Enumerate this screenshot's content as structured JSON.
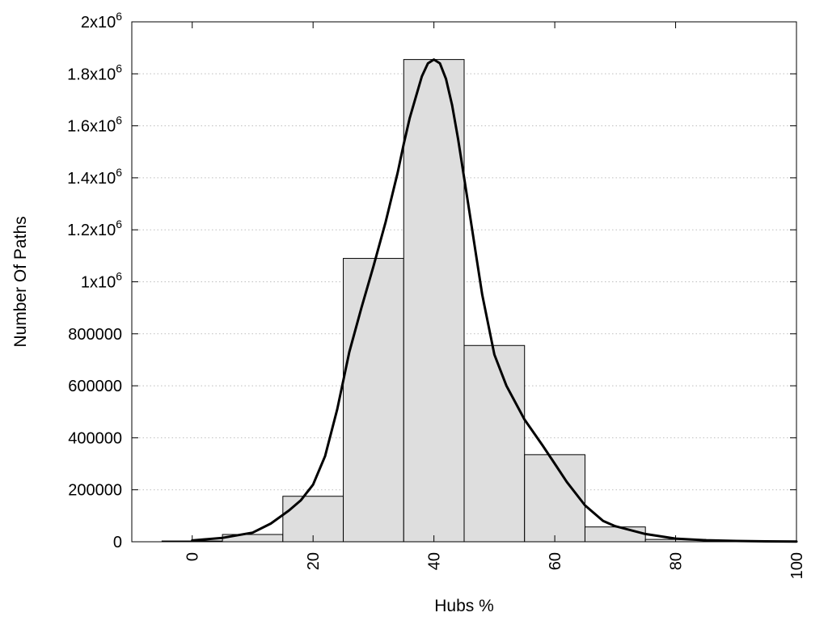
{
  "chart_data": {
    "type": "bar",
    "title": "",
    "xlabel": "Hubs %",
    "ylabel": "Number Of Paths",
    "xlim": [
      -10,
      100
    ],
    "ylim": [
      0,
      2000000
    ],
    "grid": "horizontal dotted",
    "legend": "none",
    "x_ticks": [
      0,
      20,
      40,
      60,
      80,
      100
    ],
    "x_tick_labels": [
      "0",
      "20",
      "40",
      "60",
      "80",
      "100"
    ],
    "y_ticks": [
      0,
      200000,
      400000,
      600000,
      800000,
      1000000,
      1200000,
      1400000,
      1600000,
      1800000,
      2000000
    ],
    "y_tick_labels": [
      {
        "base": "0",
        "exp": ""
      },
      {
        "base": "200000",
        "exp": ""
      },
      {
        "base": "400000",
        "exp": ""
      },
      {
        "base": "600000",
        "exp": ""
      },
      {
        "base": "800000",
        "exp": ""
      },
      {
        "base": "1x10",
        "exp": "6"
      },
      {
        "base": "1.2x10",
        "exp": "6"
      },
      {
        "base": "1.4x10",
        "exp": "6"
      },
      {
        "base": "1.6x10",
        "exp": "6"
      },
      {
        "base": "1.8x10",
        "exp": "6"
      },
      {
        "base": "2x10",
        "exp": "6"
      }
    ],
    "bars": {
      "bin_width": 10,
      "centers": [
        0,
        10,
        20,
        30,
        40,
        50,
        60,
        70,
        80,
        90
      ],
      "values": [
        3000,
        28000,
        175000,
        1090000,
        1855000,
        755000,
        335000,
        57000,
        9000,
        1500
      ]
    },
    "curve": {
      "x": [
        0,
        5,
        10,
        13,
        16,
        18,
        20,
        22,
        24,
        26,
        28,
        30,
        32,
        34,
        35,
        36,
        37,
        38,
        39,
        40,
        41,
        42,
        43,
        44,
        45,
        46,
        47,
        48,
        50,
        52,
        55,
        58,
        60,
        62,
        65,
        68,
        70,
        75,
        80,
        85,
        90,
        95,
        100
      ],
      "y": [
        5000,
        15000,
        35000,
        70000,
        120000,
        160000,
        220000,
        330000,
        510000,
        730000,
        900000,
        1060000,
        1230000,
        1420000,
        1530000,
        1630000,
        1710000,
        1790000,
        1840000,
        1855000,
        1840000,
        1780000,
        1680000,
        1550000,
        1400000,
        1250000,
        1100000,
        950000,
        720000,
        600000,
        470000,
        370000,
        300000,
        230000,
        140000,
        80000,
        60000,
        30000,
        12000,
        6000,
        3000,
        1500,
        500
      ]
    },
    "colors": {
      "bar_fill": "#dedede",
      "bar_stroke": "#000000",
      "curve": "#000000",
      "grid": "#bdbdbd"
    }
  }
}
